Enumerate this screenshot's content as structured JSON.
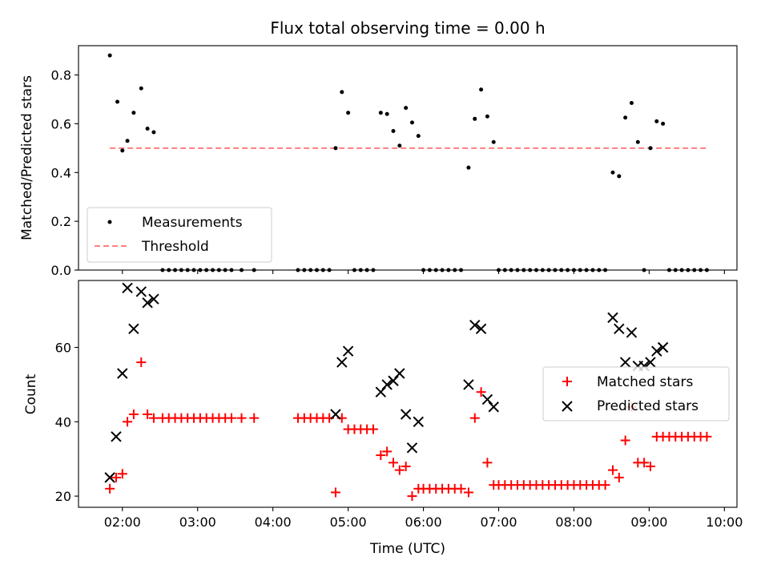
{
  "chart_data": [
    {
      "type": "scatter",
      "title": "Flux total observing time = 0.00 h",
      "xlabel": "",
      "ylabel": "Matched/Predicted stars",
      "xlim": [
        "01:25",
        "10:10"
      ],
      "ylim": [
        0,
        0.92
      ],
      "yticks": [
        0.0,
        0.2,
        0.4,
        0.6,
        0.8
      ],
      "ytick_labels": [
        "0.0",
        "0.2",
        "0.4",
        "0.6",
        "0.8"
      ],
      "legend_placement": "lower-left",
      "series": [
        {
          "name": "Measurements",
          "color": "#000000",
          "marker": "dot",
          "points": [
            [
              "01:50",
              0.88
            ],
            [
              "01:56",
              0.69
            ],
            [
              "02:00",
              0.49
            ],
            [
              "02:04",
              0.53
            ],
            [
              "02:09",
              0.645
            ],
            [
              "02:15",
              0.745
            ],
            [
              "02:20",
              0.58
            ],
            [
              "02:25",
              0.565
            ],
            [
              "02:32",
              0.0
            ],
            [
              "02:37",
              0.0
            ],
            [
              "02:42",
              0.0
            ],
            [
              "02:47",
              0.0
            ],
            [
              "02:52",
              0.0
            ],
            [
              "02:57",
              0.0
            ],
            [
              "03:02",
              0.0
            ],
            [
              "03:07",
              0.0
            ],
            [
              "03:12",
              0.0
            ],
            [
              "03:17",
              0.0
            ],
            [
              "03:22",
              0.0
            ],
            [
              "03:27",
              0.0
            ],
            [
              "03:35",
              0.0
            ],
            [
              "03:45",
              0.0
            ],
            [
              "04:20",
              0.0
            ],
            [
              "04:25",
              0.0
            ],
            [
              "04:30",
              0.0
            ],
            [
              "04:35",
              0.0
            ],
            [
              "04:40",
              0.0
            ],
            [
              "04:45",
              0.0
            ],
            [
              "04:50",
              0.5
            ],
            [
              "04:55",
              0.73
            ],
            [
              "05:00",
              0.645
            ],
            [
              "05:05",
              0.0
            ],
            [
              "05:10",
              0.0
            ],
            [
              "05:15",
              0.0
            ],
            [
              "05:20",
              0.0
            ],
            [
              "05:26",
              0.645
            ],
            [
              "05:31",
              0.64
            ],
            [
              "05:36",
              0.57
            ],
            [
              "05:41",
              0.51
            ],
            [
              "05:46",
              0.665
            ],
            [
              "05:51",
              0.605
            ],
            [
              "05:56",
              0.55
            ],
            [
              "06:00",
              0.0
            ],
            [
              "06:05",
              0.0
            ],
            [
              "06:10",
              0.0
            ],
            [
              "06:15",
              0.0
            ],
            [
              "06:20",
              0.0
            ],
            [
              "06:25",
              0.0
            ],
            [
              "06:30",
              0.0
            ],
            [
              "06:36",
              0.42
            ],
            [
              "06:41",
              0.62
            ],
            [
              "06:46",
              0.74
            ],
            [
              "06:51",
              0.63
            ],
            [
              "06:56",
              0.525
            ],
            [
              "07:00",
              0.0
            ],
            [
              "07:05",
              0.0
            ],
            [
              "07:10",
              0.0
            ],
            [
              "07:15",
              0.0
            ],
            [
              "07:20",
              0.0
            ],
            [
              "07:25",
              0.0
            ],
            [
              "07:30",
              0.0
            ],
            [
              "07:35",
              0.0
            ],
            [
              "07:40",
              0.0
            ],
            [
              "07:45",
              0.0
            ],
            [
              "07:50",
              0.0
            ],
            [
              "07:55",
              0.0
            ],
            [
              "08:00",
              0.0
            ],
            [
              "08:05",
              0.0
            ],
            [
              "08:10",
              0.0
            ],
            [
              "08:15",
              0.0
            ],
            [
              "08:20",
              0.0
            ],
            [
              "08:25",
              0.0
            ],
            [
              "08:31",
              0.4
            ],
            [
              "08:36",
              0.385
            ],
            [
              "08:41",
              0.625
            ],
            [
              "08:46",
              0.685
            ],
            [
              "08:51",
              0.525
            ],
            [
              "08:56",
              0.0
            ],
            [
              "09:01",
              0.5
            ],
            [
              "09:06",
              0.61
            ],
            [
              "09:11",
              0.6
            ],
            [
              "09:16",
              0.0
            ],
            [
              "09:21",
              0.0
            ],
            [
              "09:26",
              0.0
            ],
            [
              "09:31",
              0.0
            ],
            [
              "09:36",
              0.0
            ],
            [
              "09:41",
              0.0
            ],
            [
              "09:46",
              0.0
            ]
          ]
        },
        {
          "name": "Threshold",
          "color": "#ff7f7f",
          "style": "dashed",
          "points": [
            [
              "01:50",
              0.5
            ],
            [
              "09:46",
              0.5
            ]
          ]
        }
      ]
    },
    {
      "type": "scatter",
      "title": "",
      "xlabel": "Time (UTC)",
      "ylabel": "Count",
      "xlim": [
        "01:25",
        "10:10"
      ],
      "ylim": [
        17,
        78
      ],
      "xticks": [
        "02:00",
        "03:00",
        "04:00",
        "05:00",
        "06:00",
        "07:00",
        "08:00",
        "09:00",
        "10:00"
      ],
      "xtick_labels": [
        "02:00",
        "03:00",
        "04:00",
        "05:00",
        "06:00",
        "07:00",
        "08:00",
        "09:00",
        "10:00"
      ],
      "yticks": [
        20,
        40,
        60
      ],
      "ytick_labels": [
        "20",
        "40",
        "60"
      ],
      "legend_placement": "right",
      "series": [
        {
          "name": "Matched stars",
          "color": "#ff0000",
          "marker": "plus",
          "points": [
            [
              "01:50",
              22
            ],
            [
              "01:55",
              25
            ],
            [
              "02:00",
              26
            ],
            [
              "02:04",
              40
            ],
            [
              "02:09",
              42
            ],
            [
              "02:15",
              56
            ],
            [
              "02:20",
              42
            ],
            [
              "02:25",
              41
            ],
            [
              "02:32",
              41
            ],
            [
              "02:37",
              41
            ],
            [
              "02:42",
              41
            ],
            [
              "02:47",
              41
            ],
            [
              "02:52",
              41
            ],
            [
              "02:57",
              41
            ],
            [
              "03:02",
              41
            ],
            [
              "03:07",
              41
            ],
            [
              "03:12",
              41
            ],
            [
              "03:17",
              41
            ],
            [
              "03:22",
              41
            ],
            [
              "03:27",
              41
            ],
            [
              "03:35",
              41
            ],
            [
              "03:45",
              41
            ],
            [
              "04:20",
              41
            ],
            [
              "04:25",
              41
            ],
            [
              "04:30",
              41
            ],
            [
              "04:35",
              41
            ],
            [
              "04:40",
              41
            ],
            [
              "04:45",
              41
            ],
            [
              "04:50",
              21
            ],
            [
              "04:55",
              41
            ],
            [
              "05:00",
              38
            ],
            [
              "05:05",
              38
            ],
            [
              "05:10",
              38
            ],
            [
              "05:15",
              38
            ],
            [
              "05:20",
              38
            ],
            [
              "05:26",
              31
            ],
            [
              "05:31",
              32
            ],
            [
              "05:36",
              29
            ],
            [
              "05:41",
              27
            ],
            [
              "05:46",
              28
            ],
            [
              "05:51",
              20
            ],
            [
              "05:56",
              22
            ],
            [
              "06:00",
              22
            ],
            [
              "06:05",
              22
            ],
            [
              "06:10",
              22
            ],
            [
              "06:15",
              22
            ],
            [
              "06:20",
              22
            ],
            [
              "06:25",
              22
            ],
            [
              "06:30",
              22
            ],
            [
              "06:36",
              21
            ],
            [
              "06:41",
              41
            ],
            [
              "06:46",
              48
            ],
            [
              "06:51",
              29
            ],
            [
              "06:56",
              23
            ],
            [
              "07:00",
              23
            ],
            [
              "07:05",
              23
            ],
            [
              "07:10",
              23
            ],
            [
              "07:15",
              23
            ],
            [
              "07:20",
              23
            ],
            [
              "07:25",
              23
            ],
            [
              "07:30",
              23
            ],
            [
              "07:35",
              23
            ],
            [
              "07:40",
              23
            ],
            [
              "07:45",
              23
            ],
            [
              "07:50",
              23
            ],
            [
              "07:55",
              23
            ],
            [
              "08:00",
              23
            ],
            [
              "08:05",
              23
            ],
            [
              "08:10",
              23
            ],
            [
              "08:15",
              23
            ],
            [
              "08:20",
              23
            ],
            [
              "08:25",
              23
            ],
            [
              "08:31",
              27
            ],
            [
              "08:36",
              25
            ],
            [
              "08:41",
              35
            ],
            [
              "08:46",
              44
            ],
            [
              "08:51",
              29
            ],
            [
              "08:56",
              29
            ],
            [
              "09:01",
              28
            ],
            [
              "09:06",
              36
            ],
            [
              "09:11",
              36
            ],
            [
              "09:16",
              36
            ],
            [
              "09:21",
              36
            ],
            [
              "09:26",
              36
            ],
            [
              "09:31",
              36
            ],
            [
              "09:36",
              36
            ],
            [
              "09:41",
              36
            ],
            [
              "09:46",
              36
            ]
          ]
        },
        {
          "name": "Predicted stars",
          "color": "#000000",
          "marker": "x",
          "points": [
            [
              "01:50",
              25
            ],
            [
              "01:55",
              36
            ],
            [
              "02:00",
              53
            ],
            [
              "02:04",
              76
            ],
            [
              "02:09",
              65
            ],
            [
              "02:15",
              75
            ],
            [
              "02:20",
              72
            ],
            [
              "02:25",
              73
            ],
            [
              "04:50",
              42
            ],
            [
              "04:55",
              56
            ],
            [
              "05:00",
              59
            ],
            [
              "05:26",
              48
            ],
            [
              "05:31",
              50
            ],
            [
              "05:36",
              51
            ],
            [
              "05:41",
              53
            ],
            [
              "05:46",
              42
            ],
            [
              "05:51",
              33
            ],
            [
              "05:56",
              40
            ],
            [
              "06:36",
              50
            ],
            [
              "06:41",
              66
            ],
            [
              "06:46",
              65
            ],
            [
              "06:51",
              46
            ],
            [
              "06:56",
              44
            ],
            [
              "08:31",
              68
            ],
            [
              "08:36",
              65
            ],
            [
              "08:41",
              56
            ],
            [
              "08:46",
              64
            ],
            [
              "08:51",
              55
            ],
            [
              "08:56",
              55
            ],
            [
              "09:01",
              56
            ],
            [
              "09:06",
              59
            ],
            [
              "09:11",
              60
            ]
          ]
        }
      ]
    }
  ]
}
